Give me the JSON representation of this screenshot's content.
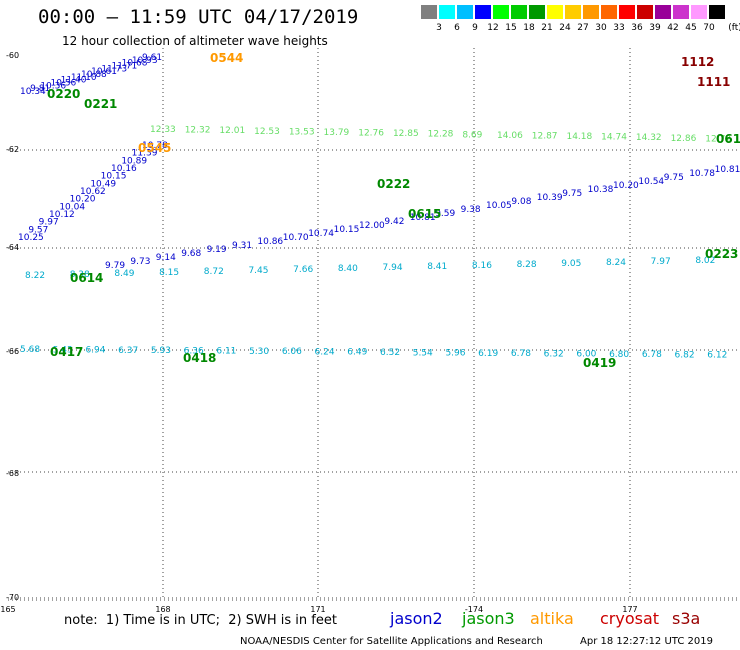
{
  "header": {
    "title": "00:00 – 11:59 UTC 04/17/2019",
    "subtitle": "12 hour collection of altimeter wave heights"
  },
  "scale": {
    "colors": [
      "#808080",
      "#00ffff",
      "#00bfff",
      "#0000ff",
      "#00ff00",
      "#00cc00",
      "#009900",
      "#ffff00",
      "#ffcc00",
      "#ff9900",
      "#ff6600",
      "#ff0000",
      "#cc0000",
      "#990099",
      "#cc33cc",
      "#ff99ff",
      "#000000"
    ],
    "labels": [
      "3",
      "6",
      "9",
      "12",
      "15",
      "18",
      "21",
      "24",
      "27",
      "30",
      "33",
      "36",
      "39",
      "42",
      "45",
      "70"
    ],
    "unit": "(ft)"
  },
  "axes": {
    "lon_labels": [
      "165",
      "168",
      "171",
      "-174",
      "177"
    ],
    "lat_labels": [
      "-60",
      "-62",
      "-64",
      "-66",
      "-68",
      "-70"
    ]
  },
  "footer": {
    "note": "note:  1) Time is in UTC;  2) SWH is in feet",
    "legend": [
      {
        "name": "jason2",
        "color": "#0000cc"
      },
      {
        "name": "jason3",
        "color": "#009900"
      },
      {
        "name": "altika",
        "color": "#ff9900"
      },
      {
        "name": "cryosat",
        "color": "#cc0000"
      },
      {
        "name": "s3a",
        "color": "#990000"
      }
    ],
    "credit": "NOAA/NESDIS Center for Satellite Applications and Research",
    "timestamp": "Apr 18 12:27:12 UTC 2019"
  },
  "tracks": [
    {
      "sat": "jason2",
      "color": "#0000cc",
      "values": [
        "10.34",
        "9.81",
        "10.36",
        "10.56",
        "11.40",
        "11.10",
        "10.88",
        "10.61",
        "11.73",
        "11.71",
        "10.68",
        "10.93",
        "9.61"
      ]
    },
    {
      "sat": "jason2",
      "color": "#0000cc",
      "values": [
        "10.25",
        "9.57",
        "9.97",
        "10.12",
        "10.04",
        "10.20",
        "10.62",
        "10.49",
        "10.15",
        "10.16",
        "10.89",
        "11.39",
        "10.78"
      ]
    },
    {
      "sat": "jason2",
      "color": "#0000cc",
      "values": [
        "9.79",
        "9.73",
        "9.14",
        "9.68",
        "9.19",
        "9.31",
        "10.86",
        "10.70",
        "10.74",
        "10.15",
        "12.00",
        "9.42",
        "10.81",
        "9.59",
        "9.38",
        "10.05",
        "9.08",
        "10.39",
        "9.75",
        "10.38",
        "10.20",
        "10.54",
        "9.75",
        "10.78",
        "10.81",
        "10.6"
      ]
    },
    {
      "sat": "jason3",
      "color": "#66dd66",
      "values": [
        "12.33",
        "12.32",
        "12.01",
        "12.53",
        "13.53",
        "13.79",
        "12.76",
        "12.85",
        "12.28",
        "8.69",
        "14.06",
        "12.87",
        "14.18",
        "14.74",
        "14.32",
        "12.86",
        "12.72",
        "12.82"
      ]
    },
    {
      "sat": "jason3",
      "color": "#00aacc",
      "values": [
        "8.22",
        "8.38",
        "8.49",
        "8.15",
        "8.72",
        "7.45",
        "7.66",
        "8.40",
        "7.94",
        "8.41",
        "8.16",
        "8.28",
        "9.05",
        "8.24",
        "7.97",
        "8.02",
        "7.93"
      ]
    },
    {
      "sat": "jason3",
      "color": "#00aacc",
      "values": [
        "5.68",
        "5.43",
        "6.94",
        "6.37",
        "5.93",
        "6.36",
        "6.11",
        "5.30",
        "6.06",
        "6.24",
        "6.49",
        "6.52",
        "5.54",
        "5.96",
        "6.19",
        "6.78",
        "6.32",
        "6.00",
        "6.80",
        "6.78",
        "6.82",
        "6.12",
        "6"
      ]
    }
  ],
  "time_tags": [
    {
      "text": "0220",
      "color": "#008800"
    },
    {
      "text": "0221",
      "color": "#008800"
    },
    {
      "text": "0544",
      "color": "#ff9900"
    },
    {
      "text": "0545",
      "color": "#ff9900"
    },
    {
      "text": "0222",
      "color": "#008800"
    },
    {
      "text": "0615",
      "color": "#008800"
    },
    {
      "text": "0614",
      "color": "#008800"
    },
    {
      "text": "0417",
      "color": "#008800"
    },
    {
      "text": "0418",
      "color": "#008800"
    },
    {
      "text": "0419",
      "color": "#008800"
    },
    {
      "text": "1112",
      "color": "#880000"
    },
    {
      "text": "1111",
      "color": "#880000"
    },
    {
      "text": "061",
      "color": "#008800"
    },
    {
      "text": "0223",
      "color": "#008800"
    }
  ]
}
